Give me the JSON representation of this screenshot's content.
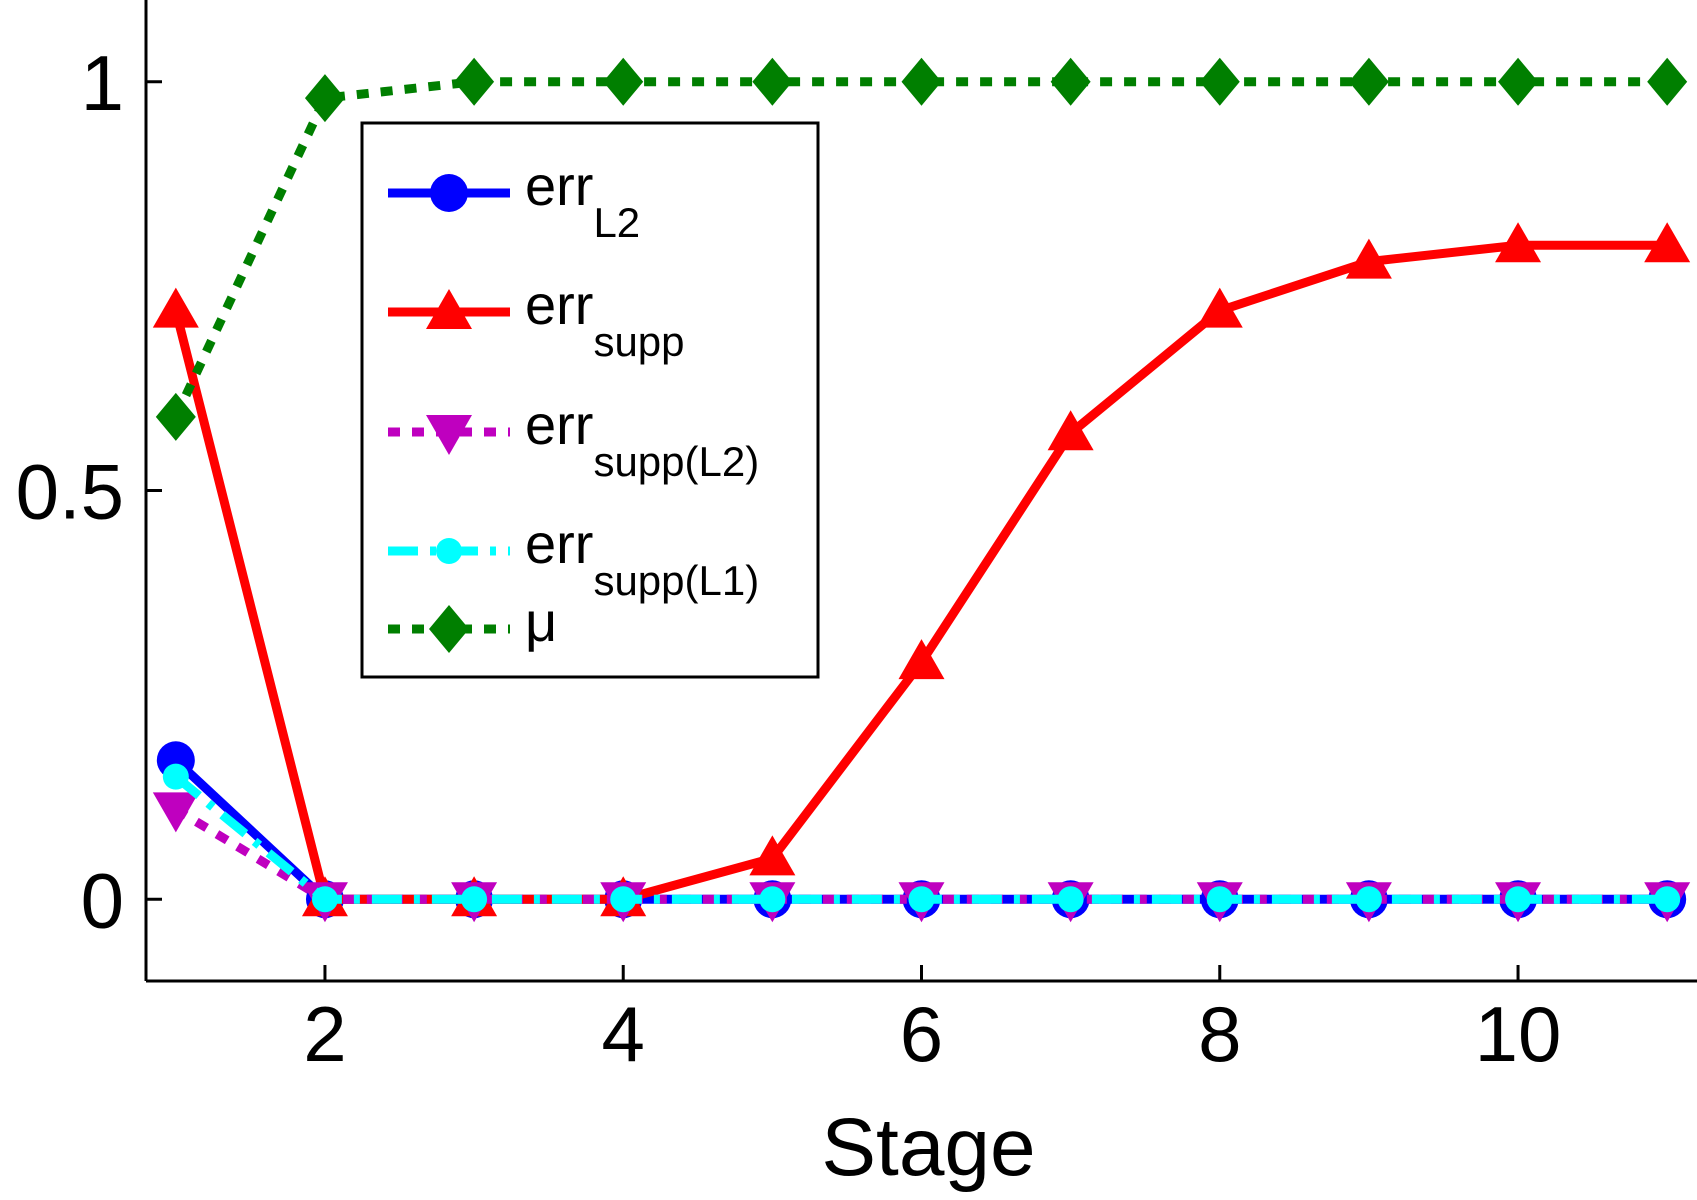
{
  "chart_data": {
    "type": "line",
    "title": "",
    "xlabel": "Stage",
    "ylabel": "",
    "xlim": [
      0.8,
      11.2
    ],
    "ylim": [
      -0.1,
      1.1
    ],
    "xticks": [
      2,
      4,
      6,
      8,
      10
    ],
    "xtick_labels": [
      "2",
      "4",
      "6",
      "8",
      "10"
    ],
    "yticks": [
      0,
      0.5,
      1
    ],
    "ytick_labels": [
      "0",
      "0.5",
      "1"
    ],
    "grid": false,
    "legend_position": "upper-left",
    "x": [
      1,
      2,
      3,
      4,
      5,
      6,
      7,
      8,
      9,
      10,
      11
    ],
    "series": [
      {
        "name": "err",
        "sub": "L2",
        "color": "#0000ff",
        "dash": "solid",
        "marker": "circle",
        "values": [
          0.17,
          0.0,
          0.0,
          0.0,
          0.0,
          0.0,
          0.0,
          0.0,
          0.0,
          0.0,
          0.0
        ]
      },
      {
        "name": "err",
        "sub": "supp",
        "color": "#ff0000",
        "dash": "solid",
        "marker": "triangle-up",
        "values": [
          0.72,
          0.0,
          0.0,
          0.0,
          0.05,
          0.29,
          0.57,
          0.72,
          0.78,
          0.8,
          0.8
        ]
      },
      {
        "name": "err",
        "sub": "supp(L2)",
        "color": "#bf00bf",
        "dash": "dotted",
        "marker": "triangle-down",
        "values": [
          0.11,
          0.0,
          0.0,
          0.0,
          0.0,
          0.0,
          0.0,
          0.0,
          0.0,
          0.0,
          0.0
        ]
      },
      {
        "name": "err",
        "sub": "supp(L1)",
        "color": "#00ffff",
        "dash": "dashdot",
        "marker": "dot",
        "values": [
          0.15,
          0.0,
          0.0,
          0.0,
          0.0,
          0.0,
          0.0,
          0.0,
          0.0,
          0.0,
          0.0
        ]
      },
      {
        "name": "μ",
        "sub": "",
        "color": "#007f00",
        "dash": "dotted",
        "marker": "diamond",
        "values": [
          0.59,
          0.98,
          1.0,
          1.0,
          1.0,
          1.0,
          1.0,
          1.0,
          1.0,
          1.0,
          1.0
        ]
      }
    ]
  }
}
